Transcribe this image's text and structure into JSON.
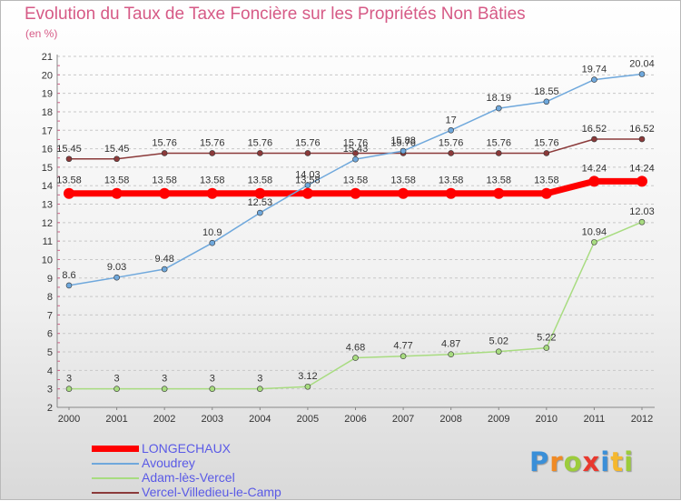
{
  "header": {
    "title": "Evolution du Taux de Taxe Foncière sur les Propriétés Non Bâties",
    "subtitle": "(en %)"
  },
  "chart_data": {
    "type": "line",
    "title": "Evolution du Taux de Taxe Foncière sur les Propriétés Non Bâties",
    "ylabel": "(en %)",
    "xlabel": "",
    "categories": [
      "2000",
      "2001",
      "2002",
      "2003",
      "2004",
      "2005",
      "2006",
      "2007",
      "2008",
      "2009",
      "2010",
      "2011",
      "2012"
    ],
    "ylim": [
      2,
      21
    ],
    "yticks": [
      2,
      3,
      4,
      5,
      6,
      7,
      8,
      9,
      10,
      11,
      12,
      13,
      14,
      15,
      16,
      17,
      18,
      19,
      20,
      21
    ],
    "grid": "horizontal dashed",
    "legend_position": "bottom-left",
    "series": [
      {
        "name": "LONGECHAUX",
        "color": "#ff0000",
        "values": [
          13.58,
          13.58,
          13.58,
          13.58,
          13.58,
          13.58,
          13.58,
          13.58,
          13.58,
          13.58,
          13.58,
          14.24,
          14.24
        ],
        "labels": [
          "13.58",
          "13.58",
          "13.58",
          "13.58",
          "13.58",
          "13.58",
          "13.58",
          "13.58",
          "13.58",
          "13.58",
          "13.58",
          "14.24",
          "14.24"
        ]
      },
      {
        "name": "Avoudrey",
        "color": "#6fa8dc",
        "values": [
          8.6,
          9.03,
          9.48,
          10.9,
          12.53,
          14.03,
          15.43,
          15.88,
          17,
          18.19,
          18.55,
          19.74,
          20.04
        ],
        "labels": [
          "8.6",
          "9.03",
          "9.48",
          "10.9",
          "12.53",
          "14.03",
          "15.43",
          "15.88",
          "17",
          "18.19",
          "18.55",
          "19.74",
          "20.04"
        ]
      },
      {
        "name": "Adam-lès-Vercel",
        "color": "#a8dc80",
        "values": [
          3,
          3,
          3,
          3,
          3,
          3.12,
          4.68,
          4.77,
          4.87,
          5.02,
          5.22,
          10.94,
          12.03
        ],
        "labels": [
          "3",
          "3",
          "3",
          "3",
          "3",
          "3.12",
          "4.68",
          "4.77",
          "4.87",
          "5.02",
          "5.22",
          "10.94",
          "12.03"
        ]
      },
      {
        "name": "Vercel-Villedieu-le-Camp",
        "color": "#8b3a3a",
        "values": [
          15.45,
          15.45,
          15.76,
          15.76,
          15.76,
          15.76,
          15.76,
          15.76,
          15.76,
          15.76,
          15.76,
          16.52,
          16.52
        ],
        "labels": [
          "15.45",
          "15.45",
          "15.76",
          "15.76",
          "15.76",
          "15.76",
          "15.76",
          "15.76",
          "15.76",
          "15.76",
          "15.76",
          "16.52",
          "16.52"
        ]
      }
    ]
  },
  "logo": {
    "letters": [
      "P",
      "r",
      "o",
      "x",
      "i",
      "t",
      "i"
    ]
  }
}
